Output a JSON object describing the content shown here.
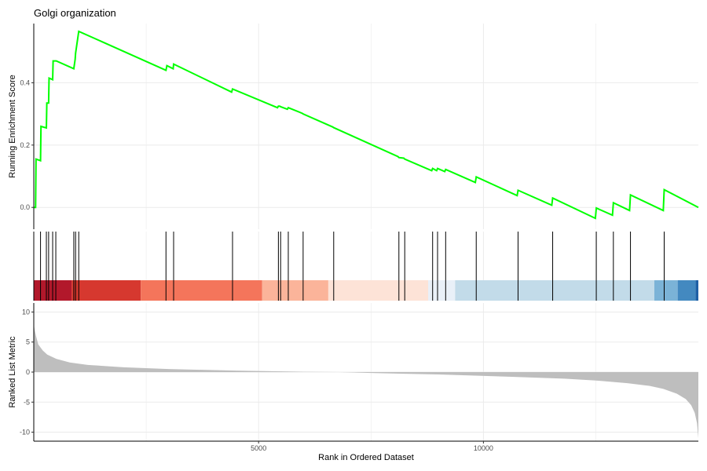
{
  "chart_data": {
    "type": "line",
    "title": "Golgi organization",
    "xlabel": "Rank in Ordered Dataset",
    "xlim": [
      0,
      14780
    ],
    "x_ticks": [
      5000,
      10000
    ],
    "x_tick_labels": [
      "5000",
      "10000"
    ],
    "grid": true,
    "panels": {
      "running_score": {
        "ylabel": "Running Enrichment Score",
        "ylim": [
          -0.07,
          0.59
        ],
        "y_ticks": [
          0.0,
          0.2,
          0.4
        ],
        "y_tick_labels": [
          "0.0",
          "0.2",
          "0.4"
        ],
        "line_color": "#00ff00",
        "series": [
          {
            "x": [
              0,
              40,
              50,
              150,
              160,
              280,
              290,
              330,
              340,
              420,
              430,
              490,
              500,
              890,
              920,
              930,
              960,
              1000,
              2940,
              2960,
              3100,
              3110,
              4400,
              4420,
              5420,
              5440,
              5470,
              5490,
              5640,
              5660,
              5970,
              5990,
              6650,
              6670,
              8100,
              8120,
              8230,
              8250,
              8850,
              8870,
              8960,
              8980,
              9140,
              9160,
              9820,
              9840,
              10750,
              10770,
              11520,
              11540,
              12490,
              12510,
              12870,
              12890,
              13250,
              13270,
              14000,
              14020,
              14780
            ],
            "y": [
              0.0,
              0.0,
              0.155,
              0.15,
              0.26,
              0.255,
              0.335,
              0.335,
              0.415,
              0.41,
              0.47,
              0.47,
              0.47,
              0.445,
              0.475,
              0.495,
              0.525,
              0.565,
              0.44,
              0.455,
              0.445,
              0.46,
              0.37,
              0.38,
              0.32,
              0.325,
              0.325,
              0.323,
              0.315,
              0.32,
              0.302,
              0.3,
              0.258,
              0.256,
              0.163,
              0.16,
              0.158,
              0.155,
              0.118,
              0.125,
              0.118,
              0.125,
              0.115,
              0.122,
              0.08,
              0.098,
              0.038,
              0.055,
              0.007,
              0.03,
              -0.035,
              -0.002,
              -0.025,
              0.015,
              -0.01,
              0.04,
              -0.01,
              0.057,
              0.0
            ]
          }
        ]
      },
      "hit_positions": [
        0,
        150,
        280,
        330,
        420,
        490,
        890,
        930,
        1000,
        2940,
        3110,
        4420,
        5440,
        5490,
        5660,
        5990,
        6670,
        8120,
        8250,
        8870,
        8980,
        9160,
        9840,
        10770,
        11540,
        12510,
        12890,
        13270,
        14020
      ],
      "heat_bar": {
        "segments": [
          {
            "from": 0,
            "to": 840,
            "color": "#b2182b"
          },
          {
            "from": 840,
            "to": 2380,
            "color": "#d6382f"
          },
          {
            "from": 2380,
            "to": 5080,
            "color": "#f4755b"
          },
          {
            "from": 5080,
            "to": 6550,
            "color": "#fbb49a"
          },
          {
            "from": 6550,
            "to": 8770,
            "color": "#fde3d7"
          },
          {
            "from": 8770,
            "to": 9370,
            "color": "#e9f0f8"
          },
          {
            "from": 9370,
            "to": 13800,
            "color": "#c2dbe9"
          },
          {
            "from": 13800,
            "to": 14320,
            "color": "#7bb3d7"
          },
          {
            "from": 14320,
            "to": 14720,
            "color": "#4389c0"
          },
          {
            "from": 14720,
            "to": 14780,
            "color": "#1e60a6"
          }
        ]
      },
      "ranked_metric": {
        "ylabel": "Ranked List Metric",
        "ylim": [
          -11.5,
          11.5
        ],
        "y_ticks": [
          10,
          5,
          0,
          -5,
          -10
        ],
        "y_tick_labels": [
          "10",
          "5",
          "0",
          "-5",
          "-10"
        ],
        "fill_color": "#bebebe",
        "x": [
          0,
          20,
          50,
          100,
          200,
          300,
          500,
          800,
          1200,
          2000,
          3000,
          4500,
          6000,
          6800,
          7500,
          9000,
          10500,
          11800,
          12500,
          13200,
          13700,
          14000,
          14300,
          14500,
          14620,
          14700,
          14750,
          14780
        ],
        "y": [
          8.0,
          7.0,
          6.0,
          4.6,
          3.6,
          2.9,
          2.2,
          1.6,
          1.2,
          0.8,
          0.5,
          0.25,
          0.05,
          0.0,
          -0.15,
          -0.4,
          -0.75,
          -1.1,
          -1.4,
          -1.85,
          -2.3,
          -2.8,
          -3.6,
          -4.5,
          -5.5,
          -6.8,
          -8.5,
          -11.0
        ]
      }
    }
  }
}
